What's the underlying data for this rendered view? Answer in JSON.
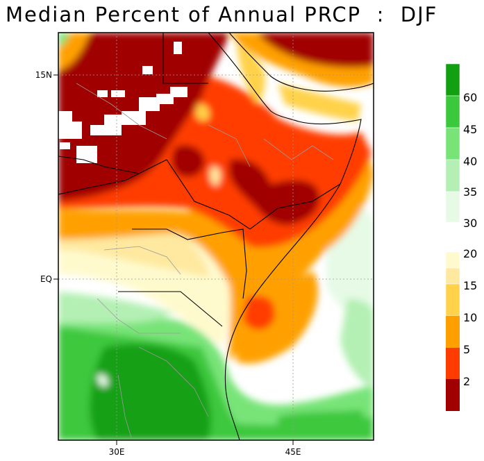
{
  "title": "Median Percent of Annual PRCP  :  DJF",
  "map": {
    "lat_ticks": [
      "15N",
      "EQ"
    ],
    "lon_ticks": [
      "30E",
      "45E"
    ]
  },
  "colorbar": {
    "upper_labels": [
      "60",
      "45",
      "40",
      "35",
      "30"
    ],
    "upper_colors": [
      "#12a012",
      "#3cc83c",
      "#78e478",
      "#b4f0b4",
      "#e6fae6"
    ],
    "lower_labels": [
      "20",
      "15",
      "10",
      "5",
      "2"
    ],
    "lower_colors": [
      "#fffacd",
      "#ffe9a0",
      "#ffd24a",
      "#ffa000",
      "#ff3c00",
      "#a00000"
    ]
  },
  "colors": {
    "driest": "#a00000",
    "wettest": "#12a012"
  }
}
